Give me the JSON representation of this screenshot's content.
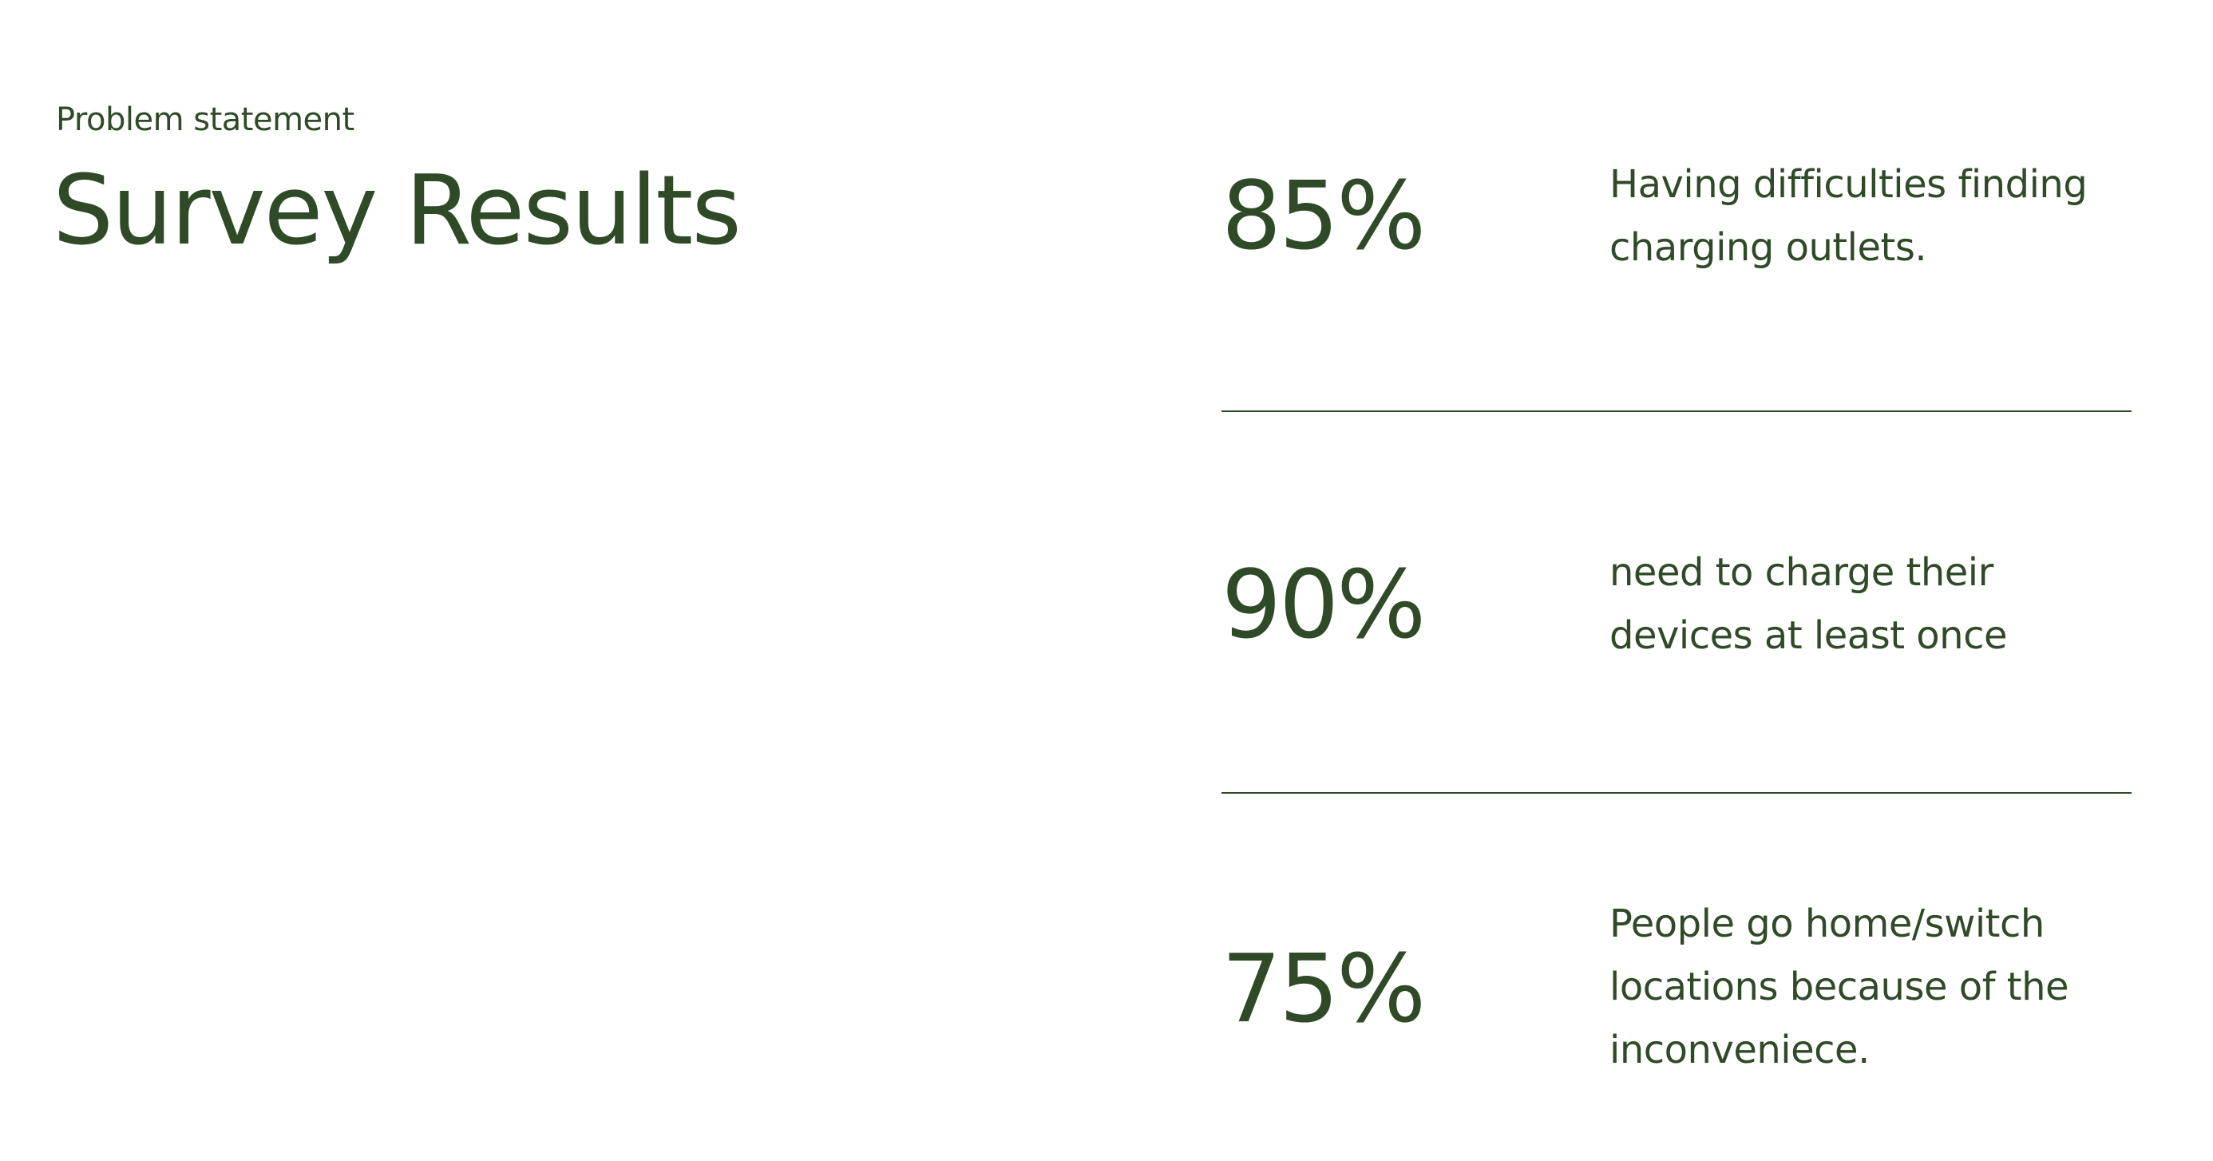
{
  "header": {
    "eyebrow": "Problem statement",
    "title": "Survey Results"
  },
  "stats": [
    {
      "value": "85%",
      "description": "Having difficulties finding charging outlets."
    },
    {
      "value": "90%",
      "description": "need to charge their devices at least once"
    },
    {
      "value": "75%",
      "description": "People go home/switch locations because of the inconveniece."
    }
  ],
  "colors": {
    "text": "#2f4a27",
    "background": "#ffffff",
    "divider": "#2f4a27"
  }
}
